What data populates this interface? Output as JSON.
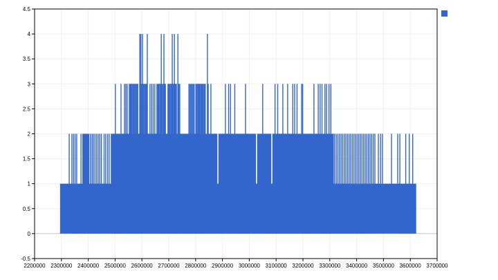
{
  "window": {
    "background": "#ffffff"
  },
  "legend": {
    "position": "top-right",
    "items": [
      {
        "label": "",
        "color": "#3366cc"
      }
    ]
  },
  "chart_data": {
    "type": "bar",
    "title": "",
    "xlabel": "",
    "ylabel": "",
    "xlim": [
      2200000,
      3700000
    ],
    "ylim": [
      -0.5,
      4.5
    ],
    "grid": true,
    "legend_position": "top-right",
    "series_color": "#3366cc",
    "colors": {
      "grid": "#f0f0f0",
      "zero_line": "#c0c0c0",
      "frame": "#000000",
      "tick_label": "#000000"
    },
    "x_ticks": [
      2200000,
      2300000,
      2400000,
      2500000,
      2600000,
      2700000,
      2800000,
      2900000,
      3000000,
      3100000,
      3200000,
      3300000,
      3400000,
      3500000,
      3600000,
      3700000
    ],
    "x_tick_labels": [
      "2200000",
      "2300000",
      "2400000",
      "2500000",
      "2600000",
      "2700000",
      "2800000",
      "2900000",
      "3000000",
      "3100000",
      "3200000",
      "3300000",
      "3400000",
      "3500000",
      "3600000",
      "3700000"
    ],
    "y_ticks": [
      -0.5,
      0,
      0.5,
      1,
      1.5,
      2,
      2.5,
      3,
      3.5,
      4,
      4.5
    ],
    "y_tick_labels": [
      "-0.5",
      "0",
      "0.5",
      "1",
      "1.5",
      "2",
      "2.5",
      "3",
      "3.5",
      "4",
      "4.5"
    ],
    "shapes": [
      {
        "type": "block",
        "x0": 2295000,
        "x1": 3622000,
        "h": 1
      },
      {
        "type": "needle",
        "x": 2329000,
        "h": 2
      },
      {
        "type": "needle",
        "x": 2339000,
        "h": 2
      },
      {
        "type": "needle",
        "x": 2345000,
        "h": 2
      },
      {
        "type": "needle",
        "x": 2351000,
        "h": 2
      },
      {
        "type": "needle",
        "x": 2357000,
        "h": 2
      },
      {
        "type": "needle",
        "x": 2373000,
        "h": 2
      },
      {
        "type": "block",
        "x0": 2378000,
        "x1": 2404000,
        "h": 2
      },
      {
        "type": "needle",
        "x": 2408000,
        "h": 2
      },
      {
        "type": "needle",
        "x": 2414000,
        "h": 2
      },
      {
        "type": "needle",
        "x": 2419000,
        "h": 2
      },
      {
        "type": "needle",
        "x": 2425000,
        "h": 2
      },
      {
        "type": "needle",
        "x": 2431000,
        "h": 2
      },
      {
        "type": "needle",
        "x": 2437000,
        "h": 2
      },
      {
        "type": "needle",
        "x": 2443000,
        "h": 2
      },
      {
        "type": "needle",
        "x": 2449000,
        "h": 2
      },
      {
        "type": "needle",
        "x": 2459000,
        "h": 2
      },
      {
        "type": "needle",
        "x": 2465000,
        "h": 2
      },
      {
        "type": "needle",
        "x": 2472000,
        "h": 2
      },
      {
        "type": "needle",
        "x": 2478000,
        "h": 2
      },
      {
        "type": "block",
        "x0": 2484000,
        "x1": 2881000,
        "h": 2
      },
      {
        "type": "block",
        "x0": 2885000,
        "x1": 3025000,
        "h": 2
      },
      {
        "type": "block",
        "x0": 3029000,
        "x1": 3082000,
        "h": 2
      },
      {
        "type": "block",
        "x0": 3086000,
        "x1": 3315000,
        "h": 2
      },
      {
        "type": "run",
        "x0": 3318000,
        "x1": 3470000,
        "h": 2,
        "step": 6000
      },
      {
        "type": "needle",
        "x": 3481000,
        "h": 2
      },
      {
        "type": "needle",
        "x": 3489000,
        "h": 2
      },
      {
        "type": "needle",
        "x": 3496000,
        "h": 2
      },
      {
        "type": "needle",
        "x": 3530000,
        "h": 2
      },
      {
        "type": "needle",
        "x": 3553000,
        "h": 2
      },
      {
        "type": "needle",
        "x": 3561000,
        "h": 2
      },
      {
        "type": "needle",
        "x": 3583000,
        "h": 2
      },
      {
        "type": "needle",
        "x": 3596000,
        "h": 2
      },
      {
        "type": "needle",
        "x": 3609000,
        "h": 2
      },
      {
        "type": "needle",
        "x": 2501000,
        "h": 3
      },
      {
        "type": "needle",
        "x": 2522000,
        "h": 3
      },
      {
        "type": "run",
        "x0": 2535000,
        "x1": 2548000,
        "h": 3,
        "step": 5000
      },
      {
        "type": "run",
        "x0": 2553000,
        "x1": 2587000,
        "h": 3,
        "step": 3500
      },
      {
        "type": "run",
        "x0": 2592000,
        "x1": 2620000,
        "h": 3,
        "step": 3500
      },
      {
        "type": "run",
        "x0": 2630000,
        "x1": 2651000,
        "h": 3,
        "step": 6000
      },
      {
        "type": "run",
        "x0": 2656000,
        "x1": 2690000,
        "h": 3,
        "step": 3500
      },
      {
        "type": "run",
        "x0": 2697000,
        "x1": 2731000,
        "h": 3,
        "step": 3500
      },
      {
        "type": "run",
        "x0": 2734000,
        "x1": 2741000,
        "h": 3,
        "step": 3500
      },
      {
        "type": "run",
        "x0": 2775000,
        "x1": 2798000,
        "h": 3,
        "step": 4000
      },
      {
        "type": "run",
        "x0": 2801000,
        "x1": 2837000,
        "h": 3,
        "step": 3500
      },
      {
        "type": "needle",
        "x": 2847000,
        "h": 3
      },
      {
        "type": "needle",
        "x": 2857000,
        "h": 3
      },
      {
        "type": "needle",
        "x": 2911000,
        "h": 3
      },
      {
        "type": "needle",
        "x": 2923000,
        "h": 3
      },
      {
        "type": "needle",
        "x": 2930000,
        "h": 3
      },
      {
        "type": "needle",
        "x": 2946000,
        "h": 3
      },
      {
        "type": "needle",
        "x": 2986000,
        "h": 3
      },
      {
        "type": "needle",
        "x": 3050000,
        "h": 3
      },
      {
        "type": "needle",
        "x": 3096000,
        "h": 3
      },
      {
        "type": "needle",
        "x": 3106000,
        "h": 3
      },
      {
        "type": "needle",
        "x": 3125000,
        "h": 3
      },
      {
        "type": "needle",
        "x": 3143000,
        "h": 3
      },
      {
        "type": "needle",
        "x": 3162000,
        "h": 3
      },
      {
        "type": "needle",
        "x": 3169000,
        "h": 3
      },
      {
        "type": "needle",
        "x": 3178000,
        "h": 3
      },
      {
        "type": "needle",
        "x": 3195000,
        "h": 3
      },
      {
        "type": "needle",
        "x": 3199000,
        "h": 3
      },
      {
        "type": "needle",
        "x": 3241000,
        "h": 3
      },
      {
        "type": "needle",
        "x": 3257000,
        "h": 3
      },
      {
        "type": "needle",
        "x": 3264000,
        "h": 3
      },
      {
        "type": "needle",
        "x": 3271000,
        "h": 3
      },
      {
        "type": "needle",
        "x": 3282000,
        "h": 3
      },
      {
        "type": "needle",
        "x": 3288000,
        "h": 3
      },
      {
        "type": "needle",
        "x": 3297000,
        "h": 3
      },
      {
        "type": "needle",
        "x": 3304000,
        "h": 3
      },
      {
        "type": "needle",
        "x": 2592000,
        "h": 4
      },
      {
        "type": "needle",
        "x": 2596000,
        "h": 4
      },
      {
        "type": "needle",
        "x": 2602000,
        "h": 4
      },
      {
        "type": "needle",
        "x": 2620000,
        "h": 4
      },
      {
        "type": "needle",
        "x": 2672000,
        "h": 4
      },
      {
        "type": "needle",
        "x": 2682000,
        "h": 4
      },
      {
        "type": "needle",
        "x": 2713000,
        "h": 4
      },
      {
        "type": "needle",
        "x": 2721000,
        "h": 4
      },
      {
        "type": "needle",
        "x": 2734000,
        "h": 4
      },
      {
        "type": "needle",
        "x": 2844000,
        "h": 4
      }
    ]
  }
}
